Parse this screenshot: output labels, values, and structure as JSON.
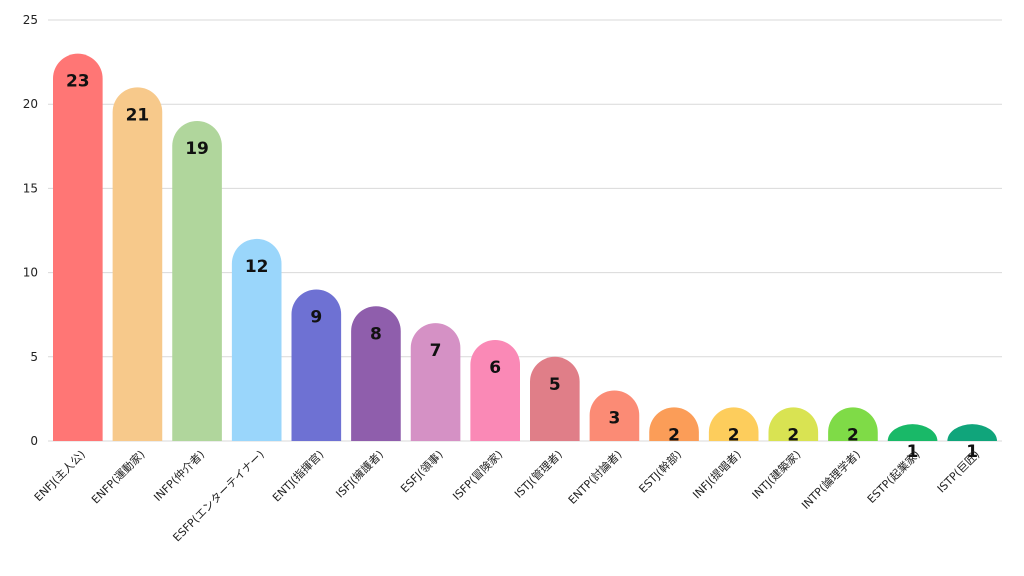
{
  "chart_data": {
    "type": "bar",
    "title": "",
    "xlabel": "",
    "ylabel": "",
    "ylim": [
      0,
      25
    ],
    "yticks": [
      0,
      5,
      10,
      15,
      20,
      25
    ],
    "grid": true,
    "legend": "none",
    "categories": [
      "ENFJ(主人公)",
      "ENFP(運動家)",
      "INFP(仲介者)",
      "ESFP(エンターテイナー)",
      "ENTJ(指揮官)",
      "ISFJ(擁護者)",
      "ESFJ(領事)",
      "ISFP(冒険家)",
      "ISTJ(管理者)",
      "ENTP(討論者)",
      "ESTJ(幹部)",
      "INFJ(提唱者)",
      "INTJ(建築家)",
      "INTP(論理学者)",
      "ESTP(起業家)",
      "ISTP(巨匠)"
    ],
    "values": [
      23,
      21,
      19,
      12,
      9,
      8,
      7,
      6,
      5,
      3,
      2,
      2,
      2,
      2,
      1,
      1
    ],
    "colors": [
      "#ff7675",
      "#f7c98b",
      "#b0d69c",
      "#9ad6fb",
      "#6e71d3",
      "#8f5eac",
      "#d591c5",
      "#fa89b6",
      "#e07e88",
      "#fb8b75",
      "#fb9d58",
      "#fdcd5c",
      "#d9e352",
      "#7fdb47",
      "#19b968",
      "#10a57b"
    ]
  }
}
